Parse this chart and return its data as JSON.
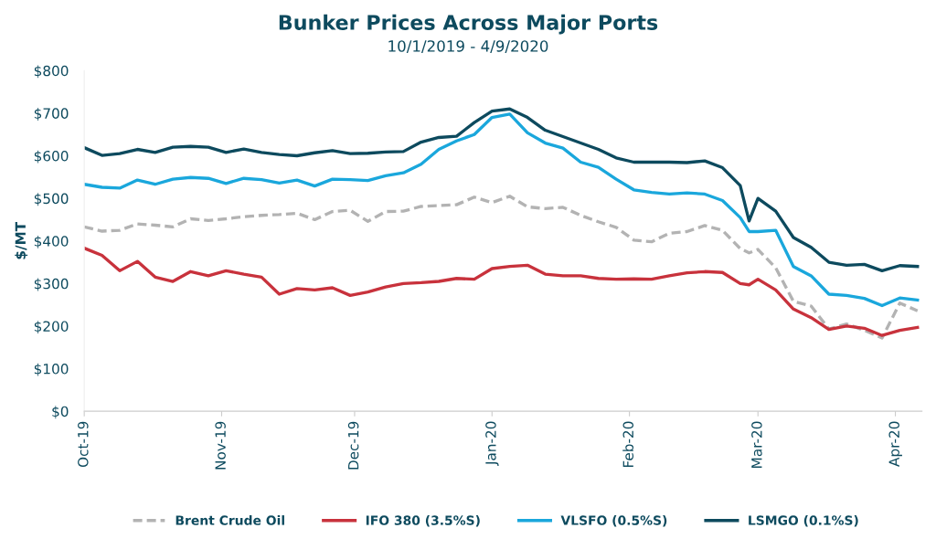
{
  "chart_data": {
    "type": "line",
    "title": "Bunker Prices Across Major Ports",
    "subtitle": "10/1/2019 - 4/9/2020",
    "ylabel": "$/MT",
    "x": [
      "2019-10-01",
      "2019-10-05",
      "2019-10-09",
      "2019-10-13",
      "2019-10-17",
      "2019-10-21",
      "2019-10-25",
      "2019-10-29",
      "2019-11-02",
      "2019-11-06",
      "2019-11-10",
      "2019-11-14",
      "2019-11-18",
      "2019-11-22",
      "2019-11-26",
      "2019-11-30",
      "2019-12-04",
      "2019-12-08",
      "2019-12-12",
      "2019-12-16",
      "2019-12-20",
      "2019-12-24",
      "2019-12-28",
      "2020-01-01",
      "2020-01-05",
      "2020-01-09",
      "2020-01-13",
      "2020-01-17",
      "2020-01-21",
      "2020-01-25",
      "2020-01-29",
      "2020-02-02",
      "2020-02-06",
      "2020-02-10",
      "2020-02-14",
      "2020-02-18",
      "2020-02-22",
      "2020-02-26",
      "2020-02-28",
      "2020-03-01",
      "2020-03-05",
      "2020-03-09",
      "2020-03-13",
      "2020-03-17",
      "2020-03-21",
      "2020-03-25",
      "2020-03-29",
      "2020-04-02",
      "2020-04-06"
    ],
    "series": [
      {
        "name": "Brent Crude Oil",
        "color": "#b3b3b3",
        "line_style": "dashed",
        "values": [
          433,
          423,
          425,
          440,
          437,
          433,
          452,
          448,
          452,
          457,
          460,
          462,
          465,
          450,
          469,
          472,
          446,
          469,
          470,
          481,
          483,
          485,
          503,
          490,
          505,
          480,
          476,
          479,
          460,
          445,
          432,
          402,
          398,
          418,
          422,
          436,
          425,
          382,
          372,
          380,
          337,
          258,
          247,
          193,
          205,
          190,
          172,
          254,
          236
        ]
      },
      {
        "name": "IFO 380 (3.5%S)",
        "color": "#c8323c",
        "values": [
          383,
          366,
          330,
          352,
          315,
          305,
          328,
          318,
          330,
          322,
          315,
          275,
          288,
          285,
          290,
          272,
          280,
          292,
          300,
          302,
          305,
          312,
          310,
          335,
          340,
          343,
          322,
          318,
          318,
          312,
          310,
          311,
          310,
          318,
          325,
          328,
          326,
          300,
          297,
          310,
          285,
          240,
          220,
          192,
          200,
          195,
          178,
          190,
          197
        ]
      },
      {
        "name": "VLSFO (0.5%S)",
        "color": "#1aa7dc",
        "values": [
          533,
          526,
          524,
          543,
          533,
          545,
          549,
          547,
          535,
          547,
          544,
          536,
          543,
          529,
          545,
          544,
          542,
          553,
          560,
          580,
          615,
          635,
          650,
          690,
          698,
          654,
          630,
          618,
          585,
          573,
          545,
          520,
          514,
          510,
          513,
          510,
          495,
          455,
          422,
          422,
          425,
          340,
          318,
          275,
          272,
          265,
          248,
          266,
          261
        ]
      },
      {
        "name": "LSMGO (0.1%S)",
        "color": "#0d4a5e",
        "values": [
          619,
          601,
          605,
          615,
          608,
          620,
          622,
          620,
          608,
          616,
          608,
          603,
          600,
          607,
          612,
          605,
          606,
          609,
          610,
          632,
          643,
          646,
          678,
          705,
          710,
          690,
          660,
          645,
          630,
          615,
          595,
          585,
          585,
          585,
          584,
          588,
          572,
          530,
          447,
          500,
          470,
          408,
          385,
          350,
          343,
          345,
          330,
          342,
          340
        ]
      }
    ],
    "xlim": [
      "2019-10-01",
      "2020-04-07"
    ],
    "xticks": [
      {
        "value": "2019-10-01",
        "label": "Oct-19"
      },
      {
        "value": "2019-11-01",
        "label": "Nov-19"
      },
      {
        "value": "2019-12-01",
        "label": "Dec-19"
      },
      {
        "value": "2020-01-01",
        "label": "Jan-20"
      },
      {
        "value": "2020-02-01",
        "label": "Feb-20"
      },
      {
        "value": "2020-03-01",
        "label": "Mar-20"
      },
      {
        "value": "2020-04-01",
        "label": "Apr-20"
      }
    ],
    "ylim": [
      0,
      800
    ],
    "yticks": [
      {
        "value": 0,
        "label": "$0"
      },
      {
        "value": 100,
        "label": "$100"
      },
      {
        "value": 200,
        "label": "$200"
      },
      {
        "value": 300,
        "label": "$300"
      },
      {
        "value": 400,
        "label": "$400"
      },
      {
        "value": 500,
        "label": "$500"
      },
      {
        "value": 600,
        "label": "$600"
      },
      {
        "value": 700,
        "label": "$700"
      },
      {
        "value": 800,
        "label": "$800"
      }
    ],
    "grid": false,
    "legend": "bottom",
    "marker": "none",
    "line_style": "solid"
  }
}
